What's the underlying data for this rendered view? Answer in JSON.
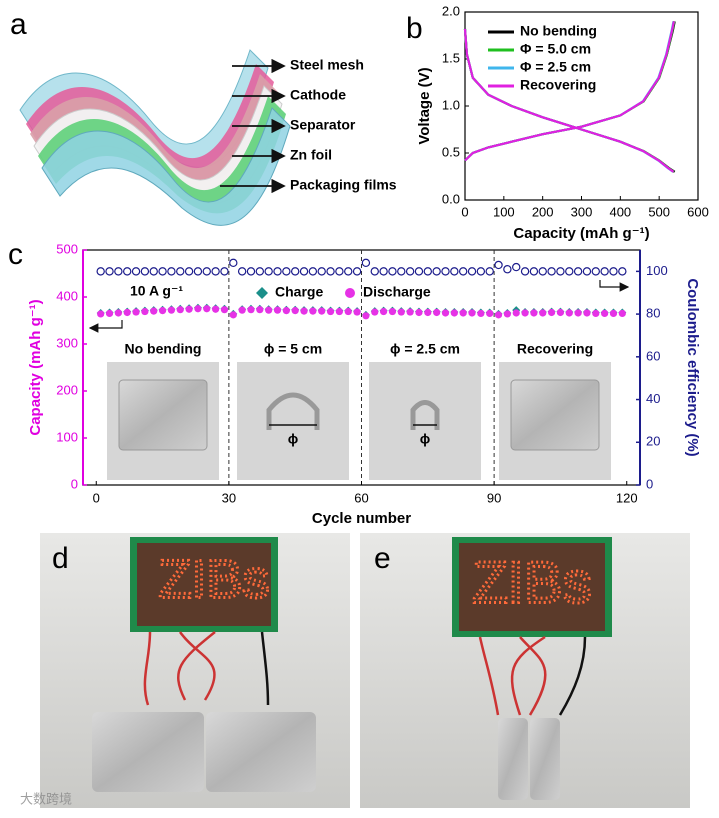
{
  "figure": {
    "panel_labels": [
      "a",
      "b",
      "c",
      "d",
      "e"
    ],
    "schematic": {
      "layers": [
        "Steel mesh",
        "Cathode",
        "Separator",
        "Zn foil",
        "Packaging films"
      ]
    },
    "photos": [
      {
        "board_text": "ZIBs"
      },
      {
        "board_text": "ZIBs"
      }
    ],
    "watermark": "大数跨境"
  },
  "chart_data": [
    {
      "type": "line",
      "xlabel": "Capacity (mAh g⁻¹)",
      "ylabel": "Voltage (V)",
      "xlim": [
        0,
        600
      ],
      "xticks": [
        0,
        100,
        200,
        300,
        400,
        500,
        600
      ],
      "ylim": [
        0,
        2.0
      ],
      "yticks": [
        {
          "value": 0,
          "label": "0.0"
        },
        0.5,
        {
          "value": 1,
          "label": "1.0"
        },
        1.5,
        {
          "value": 2,
          "label": "2.0"
        }
      ],
      "legend": "upper left",
      "series": [
        {
          "name": "No bending",
          "color": "#000000",
          "x": [
            0,
            20,
            60,
            120,
            200,
            300,
            400,
            460,
            500,
            520,
            535,
            540,
            null,
            0,
            5,
            20,
            60,
            120,
            200,
            300,
            400,
            460,
            500,
            525,
            540
          ],
          "values": [
            0.42,
            0.5,
            0.56,
            0.62,
            0.7,
            0.78,
            0.9,
            1.05,
            1.3,
            1.55,
            1.8,
            1.9,
            null,
            1.82,
            1.55,
            1.3,
            1.12,
            1.0,
            0.88,
            0.75,
            0.62,
            0.52,
            0.42,
            0.34,
            0.3
          ]
        },
        {
          "name": "Φ = 5.0 cm",
          "color": "#1fbf1f",
          "x": [
            0,
            20,
            60,
            120,
            200,
            300,
            400,
            460,
            500,
            520,
            534,
            539,
            null,
            0,
            5,
            20,
            60,
            120,
            200,
            300,
            400,
            460,
            500,
            524,
            538
          ],
          "values": [
            0.42,
            0.5,
            0.56,
            0.62,
            0.7,
            0.78,
            0.9,
            1.05,
            1.3,
            1.55,
            1.8,
            1.9,
            null,
            1.82,
            1.55,
            1.3,
            1.12,
            1.0,
            0.88,
            0.75,
            0.62,
            0.52,
            0.42,
            0.34,
            0.3
          ]
        },
        {
          "name": "Φ = 2.5 cm",
          "color": "#3fb6ec",
          "x": [
            0,
            20,
            60,
            120,
            200,
            300,
            400,
            458,
            498,
            518,
            532,
            537,
            null,
            0,
            5,
            20,
            60,
            120,
            200,
            300,
            400,
            458,
            498,
            522,
            536
          ],
          "values": [
            0.42,
            0.5,
            0.56,
            0.62,
            0.7,
            0.78,
            0.9,
            1.05,
            1.3,
            1.55,
            1.8,
            1.9,
            null,
            1.82,
            1.55,
            1.3,
            1.12,
            1.0,
            0.88,
            0.75,
            0.62,
            0.52,
            0.42,
            0.34,
            0.3
          ]
        },
        {
          "name": "Recovering",
          "color": "#e020e0",
          "x": [
            0,
            20,
            60,
            120,
            200,
            300,
            400,
            459,
            499,
            519,
            533,
            538,
            null,
            0,
            5,
            20,
            60,
            120,
            200,
            300,
            400,
            459,
            499,
            523,
            537
          ],
          "values": [
            0.42,
            0.5,
            0.56,
            0.62,
            0.7,
            0.78,
            0.9,
            1.05,
            1.3,
            1.55,
            1.8,
            1.9,
            null,
            1.82,
            1.55,
            1.3,
            1.12,
            1.0,
            0.88,
            0.75,
            0.62,
            0.52,
            0.42,
            0.34,
            0.3
          ]
        }
      ]
    },
    {
      "type": "scatter",
      "xlabel": "Cycle number",
      "ylabel": "Capacity (mAh g⁻¹)",
      "y2label": "Coulombic efficiency (%)",
      "xlim": [
        -3,
        123
      ],
      "xticks": [
        0,
        30,
        60,
        90,
        120
      ],
      "ylim": [
        0,
        500
      ],
      "yticks": [
        0,
        100,
        200,
        300,
        400,
        500
      ],
      "y2lim": [
        0,
        110
      ],
      "y2ticks": [
        0,
        20,
        40,
        60,
        80,
        100
      ],
      "y_color": "#e000e0",
      "y2_color": "#1c1c8c",
      "dividers": [
        30,
        60,
        90
      ],
      "rate": "10 A g⁻¹",
      "insets": [
        {
          "title": "No bending"
        },
        {
          "title": "ϕ = 5 cm",
          "symbol": "ϕ"
        },
        {
          "title": "ϕ = 2.5 cm",
          "symbol": "ϕ"
        },
        {
          "title": "Recovering"
        }
      ],
      "x": [
        1,
        3,
        5,
        7,
        9,
        11,
        13,
        15,
        17,
        19,
        21,
        23,
        25,
        27,
        29,
        31,
        33,
        35,
        37,
        39,
        41,
        43,
        45,
        47,
        49,
        51,
        53,
        55,
        57,
        59,
        61,
        63,
        65,
        67,
        69,
        71,
        73,
        75,
        77,
        79,
        81,
        83,
        85,
        87,
        89,
        91,
        93,
        95,
        97,
        99,
        101,
        103,
        105,
        107,
        109,
        111,
        113,
        115,
        117,
        119
      ],
      "series": [
        {
          "name": "Coulombic efficiency",
          "color": "#1c1c8c",
          "axis": "y2",
          "marker": "open-circle",
          "values": [
            100,
            100,
            100,
            100,
            100,
            100,
            100,
            100,
            100,
            100,
            100,
            100,
            100,
            100,
            100,
            104,
            100,
            100,
            100,
            100,
            100,
            100,
            100,
            100,
            100,
            100,
            100,
            100,
            100,
            100,
            104,
            100,
            100,
            100,
            100,
            100,
            100,
            100,
            100,
            100,
            100,
            100,
            100,
            100,
            100,
            103,
            101,
            102,
            100,
            100,
            100,
            100,
            100,
            100,
            100,
            100,
            100,
            100,
            100,
            100
          ]
        },
        {
          "name": "Charge",
          "color": "#1b8f8a",
          "marker": "diamond",
          "values": [
            366,
            367,
            368,
            369,
            370,
            371,
            372,
            373,
            374,
            375,
            376,
            377,
            377,
            376,
            375,
            364,
            374,
            375,
            375,
            374,
            374,
            373,
            373,
            372,
            372,
            372,
            371,
            371,
            371,
            370,
            362,
            370,
            371,
            371,
            370,
            370,
            369,
            369,
            369,
            368,
            368,
            368,
            368,
            367,
            367,
            364,
            366,
            372,
            368,
            368,
            368,
            369,
            369,
            368,
            368,
            368,
            367,
            367,
            367,
            367
          ]
        },
        {
          "name": "Discharge",
          "color": "#e632e6",
          "marker": "circle",
          "values": [
            364,
            365,
            366,
            367,
            368,
            369,
            370,
            371,
            372,
            373,
            374,
            375,
            375,
            374,
            373,
            362,
            372,
            373,
            373,
            372,
            372,
            371,
            371,
            370,
            370,
            370,
            369,
            369,
            369,
            368,
            360,
            368,
            369,
            369,
            368,
            368,
            367,
            367,
            367,
            366,
            366,
            366,
            366,
            365,
            365,
            362,
            364,
            366,
            366,
            366,
            366,
            367,
            367,
            366,
            366,
            366,
            365,
            365,
            365,
            365
          ]
        }
      ]
    }
  ]
}
